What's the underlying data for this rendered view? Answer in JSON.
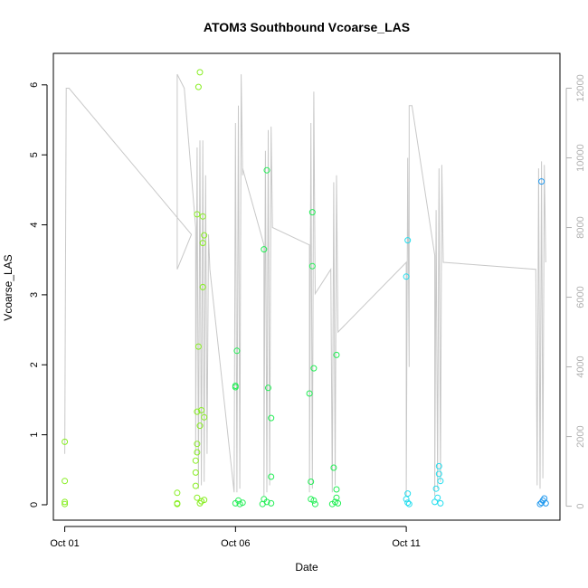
{
  "chart_data": {
    "type": "scatter",
    "title": "ATOM3 Southbound Vcoarse_LAS",
    "xlabel": "Date",
    "ylabel": "Vcoarse_LAS",
    "x_type": "date",
    "xlim": [
      "2000-09-30T16:00",
      "2000-10-15T12:00"
    ],
    "ylim": [
      -0.22,
      6.45
    ],
    "x_ticks": [
      {
        "value": "2000-10-01T00:00",
        "label": "Oct 01"
      },
      {
        "value": "2000-10-06T00:00",
        "label": "Oct 06"
      },
      {
        "value": "2000-10-11T00:00",
        "label": "Oct 11"
      }
    ],
    "y_ticks": [
      0,
      1,
      2,
      3,
      4,
      5,
      6
    ],
    "y2_ticks": [
      0,
      2000,
      4000,
      6000,
      8000,
      10000,
      12000
    ],
    "y2lim": [
      -400,
      13000
    ],
    "grid": false,
    "legend": "none",
    "colors": {
      "axis": "#000000",
      "secondary_line": "#c8c8c8",
      "secondary_axis": "#b0b0b0",
      "point_early": "#88ee22",
      "point_mid": "#22ee55",
      "point_late": "#22ddee",
      "point_last": "#2299ee"
    },
    "series": [
      {
        "marker": "open-circle",
        "axis": "left",
        "points": [
          [
            "2000-10-01T00:00",
            0.9
          ],
          [
            "2000-10-01T00:00",
            0.34
          ],
          [
            "2000-10-01T00:00",
            0.04
          ],
          [
            "2000-10-01T00:00",
            0.01
          ],
          [
            "2000-10-04T07:00",
            0.17
          ],
          [
            "2000-10-04T07:00",
            0.02
          ],
          [
            "2000-10-04T07:00",
            0.01
          ],
          [
            "2000-10-04T23:00",
            6.18
          ],
          [
            "2000-10-04T22:00",
            5.97
          ],
          [
            "2000-10-04T21:00",
            4.15
          ],
          [
            "2000-10-05T01:00",
            4.12
          ],
          [
            "2000-10-05T02:00",
            3.85
          ],
          [
            "2000-10-05T01:00",
            3.74
          ],
          [
            "2000-10-05T01:00",
            3.11
          ],
          [
            "2000-10-04T22:00",
            2.26
          ],
          [
            "2000-10-04T21:00",
            1.33
          ],
          [
            "2000-10-05T00:00",
            1.35
          ],
          [
            "2000-10-05T02:00",
            1.25
          ],
          [
            "2000-10-04T23:00",
            1.13
          ],
          [
            "2000-10-04T21:00",
            0.87
          ],
          [
            "2000-10-04T21:00",
            0.75
          ],
          [
            "2000-10-04T20:00",
            0.63
          ],
          [
            "2000-10-04T20:00",
            0.46
          ],
          [
            "2000-10-04T20:00",
            0.27
          ],
          [
            "2000-10-04T21:00",
            0.1
          ],
          [
            "2000-10-05T00:00",
            0.05
          ],
          [
            "2000-10-05T02:00",
            0.07
          ],
          [
            "2000-10-04T23:00",
            0.02
          ],
          [
            "2000-10-06T01:00",
            2.2
          ],
          [
            "2000-10-06T00:00",
            1.7
          ],
          [
            "2000-10-06T00:00",
            1.68
          ],
          [
            "2000-10-06T02:00",
            0.06
          ],
          [
            "2000-10-06T00:00",
            0.02
          ],
          [
            "2000-10-06T03:00",
            0.01
          ],
          [
            "2000-10-06T05:00",
            0.03
          ],
          [
            "2000-10-06T22:00",
            4.78
          ],
          [
            "2000-10-06T20:00",
            3.65
          ],
          [
            "2000-10-06T23:00",
            1.67
          ],
          [
            "2000-10-07T01:00",
            1.24
          ],
          [
            "2000-10-07T01:00",
            0.4
          ],
          [
            "2000-10-06T20:00",
            0.08
          ],
          [
            "2000-10-06T22:00",
            0.04
          ],
          [
            "2000-10-07T01:00",
            0.02
          ],
          [
            "2000-10-06T19:00",
            0.01
          ],
          [
            "2000-10-08T06:00",
            4.18
          ],
          [
            "2000-10-08T06:00",
            3.41
          ],
          [
            "2000-10-08T07:00",
            1.95
          ],
          [
            "2000-10-08T04:00",
            1.59
          ],
          [
            "2000-10-08T05:00",
            0.33
          ],
          [
            "2000-10-08T05:00",
            0.08
          ],
          [
            "2000-10-08T07:00",
            0.06
          ],
          [
            "2000-10-08T08:00",
            0.01
          ],
          [
            "2000-10-08T23:00",
            2.14
          ],
          [
            "2000-10-08T21:00",
            0.53
          ],
          [
            "2000-10-08T23:00",
            0.22
          ],
          [
            "2000-10-08T23:00",
            0.1
          ],
          [
            "2000-10-08T22:00",
            0.04
          ],
          [
            "2000-10-09T00:00",
            0.02
          ],
          [
            "2000-10-08T20:00",
            0.01
          ],
          [
            "2000-10-11T01:00",
            3.78
          ],
          [
            "2000-10-11T00:00",
            3.26
          ],
          [
            "2000-10-11T01:00",
            0.16
          ],
          [
            "2000-10-11T00:00",
            0.08
          ],
          [
            "2000-10-11T01:00",
            0.03
          ],
          [
            "2000-10-11T02:00",
            0.01
          ],
          [
            "2000-10-11T23:00",
            0.55
          ],
          [
            "2000-10-11T23:00",
            0.44
          ],
          [
            "2000-10-12T00:00",
            0.34
          ],
          [
            "2000-10-11T21:00",
            0.23
          ],
          [
            "2000-10-11T22:00",
            0.1
          ],
          [
            "2000-10-11T20:00",
            0.04
          ],
          [
            "2000-10-12T00:00",
            0.02
          ],
          [
            "2000-10-14T23:00",
            4.62
          ],
          [
            "2000-10-15T01:00",
            0.09
          ],
          [
            "2000-10-15T00:00",
            0.06
          ],
          [
            "2000-10-14T23:00",
            0.03
          ],
          [
            "2000-10-15T02:00",
            0.02
          ],
          [
            "2000-10-14T22:00",
            0.01
          ]
        ]
      },
      {
        "marker": "line",
        "axis": "right",
        "points": [
          [
            "2000-10-01T00:00",
            1500
          ],
          [
            "2000-10-01T01:00",
            12000
          ],
          [
            "2000-10-01T03:00",
            12000
          ],
          [
            "2000-10-04T17:00",
            7800
          ],
          [
            "2000-10-04T07:00",
            6800
          ],
          [
            "2000-10-04T07:00",
            12400
          ],
          [
            "2000-10-04T12:00",
            12000
          ],
          [
            "2000-10-04T20:00",
            8000
          ],
          [
            "2000-10-04T20:00",
            1500
          ],
          [
            "2000-10-04T21:00",
            10300
          ],
          [
            "2000-10-04T22:00",
            500
          ],
          [
            "2000-10-04T23:00",
            10500
          ],
          [
            "2000-10-05T00:00",
            600
          ],
          [
            "2000-10-05T01:00",
            10500
          ],
          [
            "2000-10-05T02:00",
            700
          ],
          [
            "2000-10-05T03:00",
            9500
          ],
          [
            "2000-10-05T04:00",
            1500
          ],
          [
            "2000-10-05T05:00",
            7800
          ],
          [
            "2000-10-05T06:00",
            6800
          ],
          [
            "2000-10-05T23:00",
            400
          ],
          [
            "2000-10-06T00:00",
            11000
          ],
          [
            "2000-10-06T01:00",
            400
          ],
          [
            "2000-10-06T02:00",
            11500
          ],
          [
            "2000-10-06T03:00",
            500
          ],
          [
            "2000-10-06T04:00",
            12400
          ],
          [
            "2000-10-06T05:00",
            9500
          ],
          [
            "2000-10-06T05:00",
            9700
          ],
          [
            "2000-10-06T20:00",
            7500
          ],
          [
            "2000-10-06T20:00",
            300
          ],
          [
            "2000-10-06T21:00",
            10200
          ],
          [
            "2000-10-06T22:00",
            400
          ],
          [
            "2000-10-06T23:00",
            10800
          ],
          [
            "2000-10-07T00:00",
            600
          ],
          [
            "2000-10-07T01:00",
            10900
          ],
          [
            "2000-10-07T02:00",
            8000
          ],
          [
            "2000-10-08T04:00",
            7500
          ],
          [
            "2000-10-08T04:00",
            400
          ],
          [
            "2000-10-08T05:00",
            11000
          ],
          [
            "2000-10-08T06:00",
            500
          ],
          [
            "2000-10-08T07:00",
            11900
          ],
          [
            "2000-10-08T08:00",
            6100
          ],
          [
            "2000-10-08T19:00",
            6800
          ],
          [
            "2000-10-08T20:00",
            400
          ],
          [
            "2000-10-08T21:00",
            9300
          ],
          [
            "2000-10-08T22:00",
            600
          ],
          [
            "2000-10-08T23:00",
            9500
          ],
          [
            "2000-10-09T00:00",
            5000
          ],
          [
            "2000-10-11T00:00",
            7000
          ],
          [
            "2000-10-11T00:00",
            300
          ],
          [
            "2000-10-11T01:00",
            10000
          ],
          [
            "2000-10-11T02:00",
            4000
          ],
          [
            "2000-10-11T02:00",
            11500
          ],
          [
            "2000-10-11T04:00",
            11500
          ],
          [
            "2000-10-11T20:00",
            7200
          ],
          [
            "2000-10-11T20:00",
            300
          ],
          [
            "2000-10-11T21:00",
            8500
          ],
          [
            "2000-10-11T22:00",
            500
          ],
          [
            "2000-10-11T23:00",
            9700
          ],
          [
            "2000-10-12T00:00",
            700
          ],
          [
            "2000-10-12T01:00",
            9800
          ],
          [
            "2000-10-12T02:00",
            7000
          ],
          [
            "2000-10-14T19:00",
            6800
          ],
          [
            "2000-10-14T20:00",
            600
          ],
          [
            "2000-10-14T21:00",
            9700
          ],
          [
            "2000-10-14T22:00",
            500
          ],
          [
            "2000-10-14T23:00",
            9900
          ],
          [
            "2000-10-15T00:00",
            800
          ],
          [
            "2000-10-15T01:00",
            9800
          ],
          [
            "2000-10-15T02:00",
            7000
          ]
        ]
      }
    ]
  }
}
